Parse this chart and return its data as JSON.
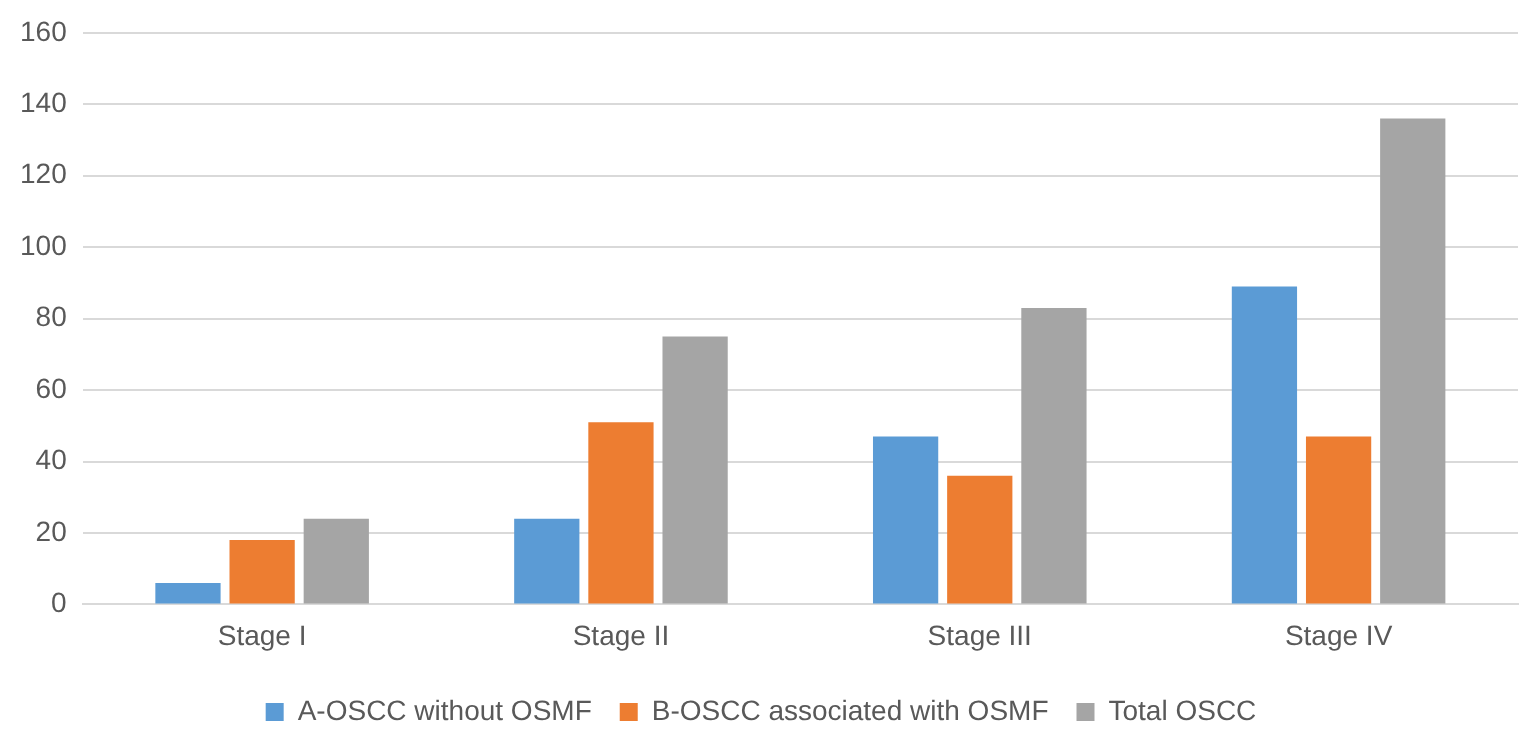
{
  "chart_data": {
    "type": "bar",
    "categories": [
      "Stage I",
      "Stage II",
      "Stage III",
      "Stage IV"
    ],
    "series": [
      {
        "name": "A-OSCC without OSMF",
        "color": "#5b9bd5",
        "values": [
          6,
          24,
          47,
          89
        ]
      },
      {
        "name": "B-OSCC associated with OSMF",
        "color": "#ed7d31",
        "values": [
          18,
          51,
          36,
          47
        ]
      },
      {
        "name": "Total OSCC",
        "color": "#a5a5a5",
        "values": [
          24,
          75,
          83,
          136
        ]
      }
    ],
    "ylim": [
      0,
      160
    ],
    "yticks": [
      0,
      20,
      40,
      60,
      80,
      100,
      120,
      140,
      160
    ],
    "grid": "y",
    "legend": "bottom"
  }
}
